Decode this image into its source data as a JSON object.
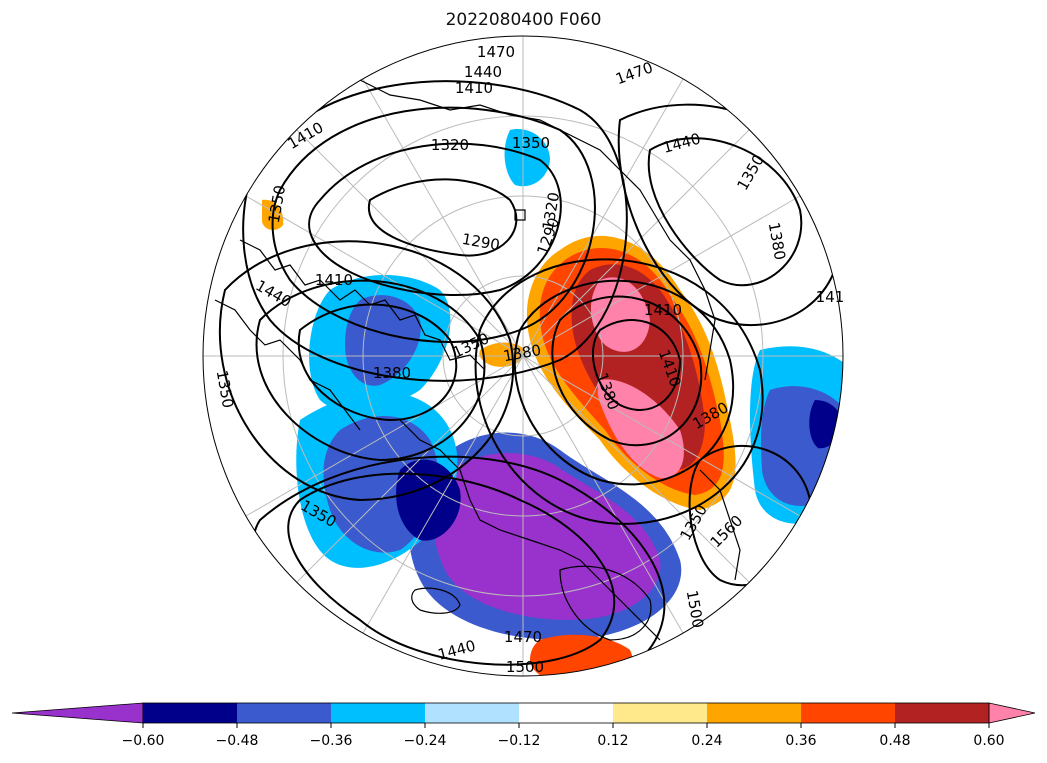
{
  "chart_data": {
    "type": "filled-contour-map",
    "title": "2022080400 F060",
    "projection": "north polar stereographic",
    "grid": true,
    "colorbar": {
      "orientation": "horizontal",
      "extend": "both",
      "levels": [
        -0.6,
        -0.48,
        -0.36,
        -0.24,
        -0.12,
        0.12,
        0.24,
        0.36,
        0.48,
        0.6
      ],
      "tick_labels": [
        "−0.60",
        "−0.48",
        "−0.36",
        "−0.24",
        "−0.12",
        "0.12",
        "0.24",
        "0.36",
        "0.48",
        "0.60"
      ],
      "colors": [
        "#9932cc",
        "#00008b",
        "#3a5acd",
        "#00bfff",
        "#b0e2ff",
        "#ffffff",
        "#ffe98a",
        "#ffa500",
        "#ff4500",
        "#b22222",
        "#ff82ab"
      ]
    },
    "contour_labels": [
      "1470",
      "1440",
      "1410",
      "1470",
      "1410",
      "1320",
      "1350",
      "1440",
      "1350",
      "1350",
      "1290",
      "1320",
      "1290",
      "1380",
      "1440",
      "1410",
      "1410",
      "1350",
      "1380",
      "1410",
      "1350",
      "1380",
      "1380",
      "1380",
      "1350",
      "1560",
      "1350",
      "1500",
      "1470",
      "1440",
      "1500",
      "141"
    ],
    "contour_levels": [
      1290,
      1320,
      1350,
      1380,
      1410,
      1440,
      1470,
      1500,
      1530,
      1560
    ]
  }
}
